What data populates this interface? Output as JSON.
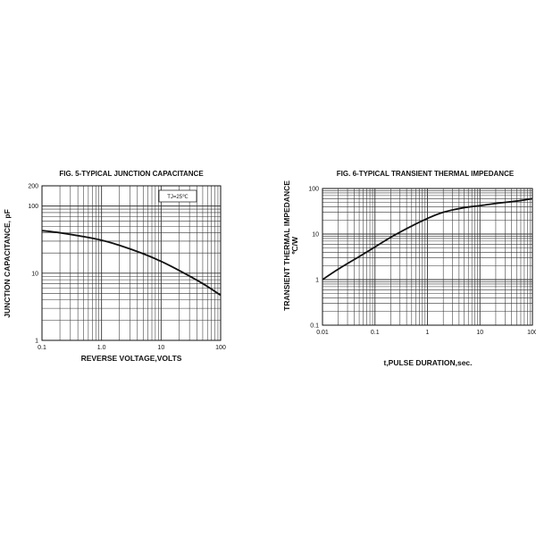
{
  "colors": {
    "line": "#111111",
    "grid": "#333333",
    "background": "#ffffff"
  },
  "chart_data": [
    {
      "type": "line",
      "title": "FIG. 5-TYPICAL JUNCTION CAPACITANCE",
      "xlabel": "REVERSE VOLTAGE,VOLTS",
      "ylabel": "JUNCTION CAPACITANCE, pF",
      "xscale": "log",
      "yscale": "log",
      "xlim": [
        0.1,
        100
      ],
      "ylim": [
        1,
        200
      ],
      "x_ticks": [
        0.1,
        1,
        10,
        100
      ],
      "x_tick_labels": [
        "0.1",
        "1.0",
        "10",
        "100"
      ],
      "y_ticks": [
        1,
        10,
        100,
        200
      ],
      "y_tick_labels": [
        "1",
        "10",
        "100",
        "200"
      ],
      "grid": true,
      "annotation": "TJ=25℃",
      "series": [
        {
          "x": [
            0.1,
            0.2,
            0.5,
            1,
            2,
            5,
            10,
            20,
            50,
            100
          ],
          "y": [
            43,
            40,
            35,
            31,
            26,
            19.5,
            15,
            11,
            7,
            4.7
          ]
        }
      ]
    },
    {
      "type": "line",
      "title": "FIG. 6-TYPICAL TRANSIENT THERMAL IMPEDANCE",
      "xlabel": "t,PULSE DURATION,sec.",
      "ylabel": "TRANSIENT THERMAL IMPEDANCE",
      "yunit": "℃/W",
      "xscale": "log",
      "yscale": "log",
      "xlim": [
        0.01,
        100
      ],
      "ylim": [
        0.1,
        100
      ],
      "x_ticks": [
        0.01,
        0.1,
        1,
        10,
        100
      ],
      "x_tick_labels": [
        "0.01",
        "0.1",
        "1",
        "10",
        "100"
      ],
      "y_ticks": [
        0.1,
        1,
        10,
        100
      ],
      "y_tick_labels": [
        "0.1",
        "1",
        "10",
        "100"
      ],
      "grid": true,
      "series": [
        {
          "x": [
            0.01,
            0.02,
            0.05,
            0.1,
            0.2,
            0.5,
            1,
            2,
            5,
            10,
            20,
            50,
            100
          ],
          "y": [
            1,
            1.7,
            3.2,
            5.2,
            8.5,
            15,
            22,
            30,
            38,
            42,
            47,
            53,
            60
          ]
        }
      ]
    }
  ]
}
